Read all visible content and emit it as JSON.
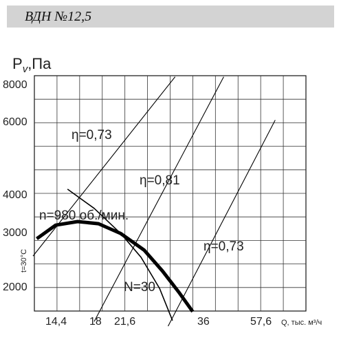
{
  "header": {
    "title": "ВДН  №12,5"
  },
  "chart_data": {
    "type": "line",
    "ylabel_main": "P",
    "ylabel_sub": "v",
    "ylabel_unit": ",Па",
    "y_side_label": "t=30°C",
    "x_unit_label": "Q, тыс. м³/ч",
    "x_ticks": [
      "14,4",
      "18",
      "21,6",
      "36",
      "57,6"
    ],
    "y_ticks": [
      "8000",
      "6000",
      "4000",
      "3000",
      "2000"
    ],
    "annotations": [
      "η=0,73",
      "η=0,81",
      "η=0,73",
      "n=980 об./мин.",
      "N=30"
    ],
    "series": [
      {
        "kind": "fan-curve",
        "points": [
          [
            12.8,
            2780
          ],
          [
            14.4,
            3050
          ],
          [
            16.5,
            3125
          ],
          [
            18.8,
            3080
          ],
          [
            21.6,
            2880
          ],
          [
            25,
            2570
          ],
          [
            28,
            2230
          ],
          [
            31,
            1930
          ],
          [
            33.8,
            1690
          ]
        ]
      },
      {
        "kind": "power-curve",
        "points": [
          [
            15.5,
            3900
          ],
          [
            18.3,
            3420
          ],
          [
            21.6,
            2880
          ],
          [
            24.5,
            2450
          ],
          [
            27.5,
            1980
          ],
          [
            29.8,
            1590
          ]
        ]
      },
      {
        "kind": "efficiency-ray",
        "points": [
          [
            12.5,
            2470
          ],
          [
            30.3,
            8400
          ]
        ]
      },
      {
        "kind": "efficiency-ray",
        "points": [
          [
            18.3,
            1580
          ],
          [
            41,
            8400
          ]
        ]
      },
      {
        "kind": "efficiency-ray",
        "points": [
          [
            29,
            1530
          ],
          [
            56.5,
            6250
          ]
        ]
      }
    ],
    "grid": true
  }
}
